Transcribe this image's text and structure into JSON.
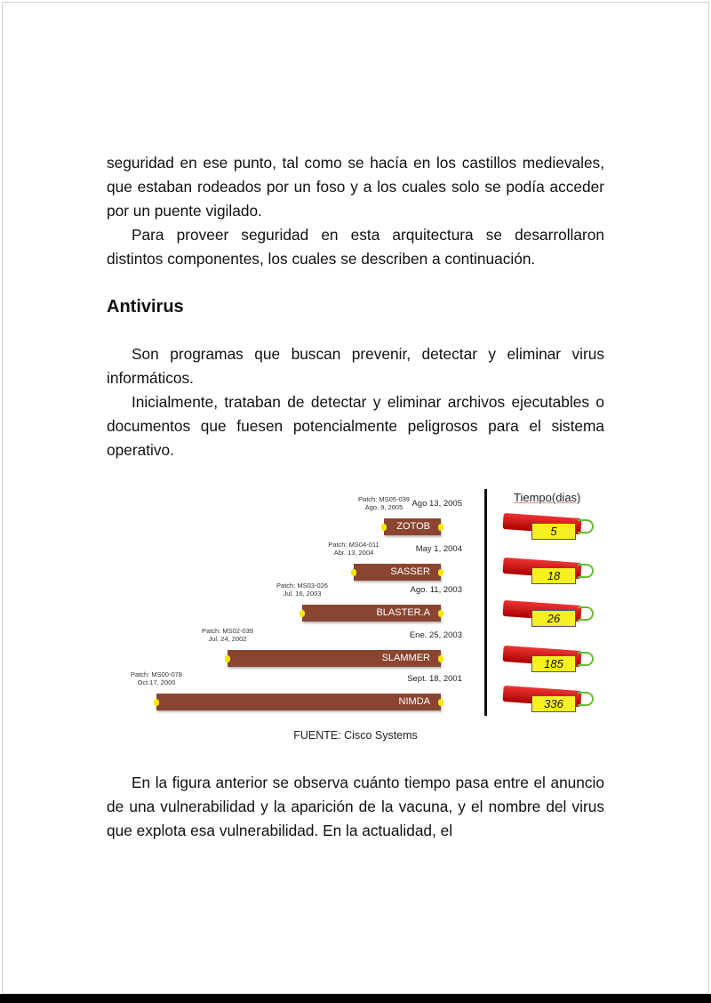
{
  "paragraphs_top": [
    "seguridad en ese punto, tal como se hacía en los castillos medievales, que estaban rodeados por un foso y a los cuales solo se podía acceder por un puente vigilado.",
    "Para proveer seguridad en esta arquitectura se desarrollaron distintos componentes, los cuales se describen a continuación."
  ],
  "heading": "Antivirus",
  "paragraphs_mid": [
    "Son programas que buscan prevenir, detectar y eliminar virus informáticos.",
    "Inicialmente, trataban de detectar y eliminar archivos ejecutables o documentos que fuesen potencialmente peligrosos para el sistema operativo."
  ],
  "figure": {
    "time_header": "Tiempo(dias)",
    "rows": [
      {
        "virus": "ZOTOB",
        "patch": "Patch: MS05-039",
        "patch_date": "Ago. 9, 2005",
        "virus_date": "Ago 13, 2005",
        "days": "5"
      },
      {
        "virus": "SASSER",
        "patch": "Patch: MS04-011",
        "patch_date": "Abr. 13, 2004",
        "virus_date": "May 1, 2004",
        "days": "18"
      },
      {
        "virus": "BLASTER.A",
        "patch": "Patch: MS03-026",
        "patch_date": "Jul. 16, 2003",
        "virus_date": "Ago. 11, 2003",
        "days": "26"
      },
      {
        "virus": "SLAMMER",
        "patch": "Patch: MS02-039",
        "patch_date": "Jul. 24, 2002",
        "virus_date": "Ene. 25, 2003",
        "days": "185"
      },
      {
        "virus": "NIMDA",
        "patch": "Patch: MS00-078",
        "patch_date": "Oct.17, 2000",
        "virus_date": "Sept. 18, 2001",
        "days": "336"
      }
    ],
    "caption": "FUENTE: Cisco Systems",
    "colors": {
      "bar": "#8a4530",
      "marker": "#f5e800",
      "dynamite": "#d42020"
    }
  },
  "paragraph_bottom": "En la figura anterior se observa cuánto tiempo pasa entre el anuncio de una vulnerabilidad y la aparición de la vacuna, y el nombre del virus que explota esa vulnerabilidad. En la actualidad, el"
}
